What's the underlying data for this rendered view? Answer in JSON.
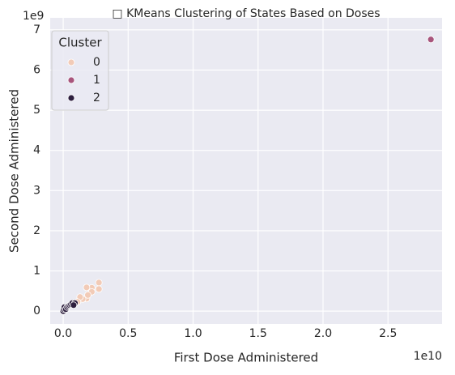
{
  "chart_data": {
    "type": "scatter",
    "title": "□ KMeans Clustering of States Based on Doses",
    "x_label": "First Dose Administered",
    "y_label": "Second Dose Administered",
    "x_offset_label": "1e10",
    "y_offset_label": "1e9",
    "legend_title": "Cluster",
    "legend": "upper left",
    "grid": true,
    "xlim": [
      -1000000000,
      29160000000
    ],
    "ylim": [
      -320000000,
      7300000000
    ],
    "xticks": [
      {
        "value": 0,
        "label": "0.0"
      },
      {
        "value": 5000000000,
        "label": "0.5"
      },
      {
        "value": 10000000000,
        "label": "1.0"
      },
      {
        "value": 15000000000,
        "label": "1.5"
      },
      {
        "value": 20000000000,
        "label": "2.0"
      },
      {
        "value": 25000000000,
        "label": "2.5"
      }
    ],
    "yticks": [
      {
        "value": 0,
        "label": "0"
      },
      {
        "value": 1000000000,
        "label": "1"
      },
      {
        "value": 2000000000,
        "label": "2"
      },
      {
        "value": 3000000000,
        "label": "3"
      },
      {
        "value": 4000000000,
        "label": "4"
      },
      {
        "value": 5000000000,
        "label": "5"
      },
      {
        "value": 6000000000,
        "label": "6"
      },
      {
        "value": 7000000000,
        "label": "7"
      }
    ],
    "series": [
      {
        "name": "0",
        "color": "#f2cbb7",
        "x": [
          2750000000,
          2750000000,
          2200000000,
          2200000000,
          1800000000,
          1800000000,
          1500000000,
          1300000000,
          1900000000,
          1100000000
        ],
        "values": [
          710000000,
          550000000,
          580000000,
          480000000,
          590000000,
          310000000,
          300000000,
          350000000,
          400000000,
          230000000
        ]
      },
      {
        "name": "1",
        "color": "#a8557c",
        "x": [
          28300000000
        ],
        "values": [
          6760000000
        ]
      },
      {
        "name": "2",
        "color": "#2d1e3e",
        "x": [
          0,
          50000000,
          100000000,
          200000000,
          300000000,
          400000000,
          500000000,
          600000000,
          700000000,
          900000000,
          800000000
        ],
        "values": [
          0,
          50000000,
          100000000,
          50000000,
          100000000,
          130000000,
          150000000,
          170000000,
          200000000,
          200000000,
          150000000
        ]
      }
    ]
  }
}
